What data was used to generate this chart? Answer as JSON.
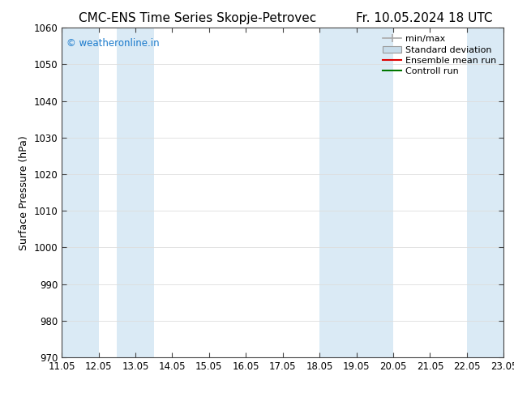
{
  "title_left": "CMC-ENS Time Series Skopje-Petrovec",
  "title_right": "Fr. 10.05.2024 18 UTC",
  "ylabel": "Surface Pressure (hPa)",
  "watermark": "© weatheronline.in",
  "watermark_color": "#1a7acc",
  "ylim": [
    970,
    1060
  ],
  "yticks": [
    970,
    980,
    990,
    1000,
    1010,
    1020,
    1030,
    1040,
    1050,
    1060
  ],
  "xtick_labels": [
    "11.05",
    "12.05",
    "13.05",
    "14.05",
    "15.05",
    "16.05",
    "17.05",
    "18.05",
    "19.05",
    "20.05",
    "21.05",
    "22.05",
    "23.05"
  ],
  "xlim": [
    0,
    12
  ],
  "shaded_bands": [
    {
      "x_start": 0,
      "x_end": 1,
      "color": "#daeaf5"
    },
    {
      "x_start": 1.5,
      "x_end": 2.5,
      "color": "#daeaf5"
    },
    {
      "x_start": 7,
      "x_end": 8,
      "color": "#daeaf5"
    },
    {
      "x_start": 8,
      "x_end": 9,
      "color": "#daeaf5"
    },
    {
      "x_start": 11,
      "x_end": 12,
      "color": "#daeaf5"
    }
  ],
  "legend_entries": [
    {
      "label": "min/max",
      "type": "errorbar",
      "color": "#aaaaaa"
    },
    {
      "label": "Standard deviation",
      "type": "box",
      "color": "#c8dcea"
    },
    {
      "label": "Ensemble mean run",
      "type": "line",
      "color": "#dd0000"
    },
    {
      "label": "Controll run",
      "type": "line",
      "color": "#007700"
    }
  ],
  "bg_color": "#ffffff",
  "grid_color": "#dddddd",
  "title_fontsize": 11,
  "axis_label_fontsize": 9,
  "tick_fontsize": 8.5,
  "legend_fontsize": 8
}
